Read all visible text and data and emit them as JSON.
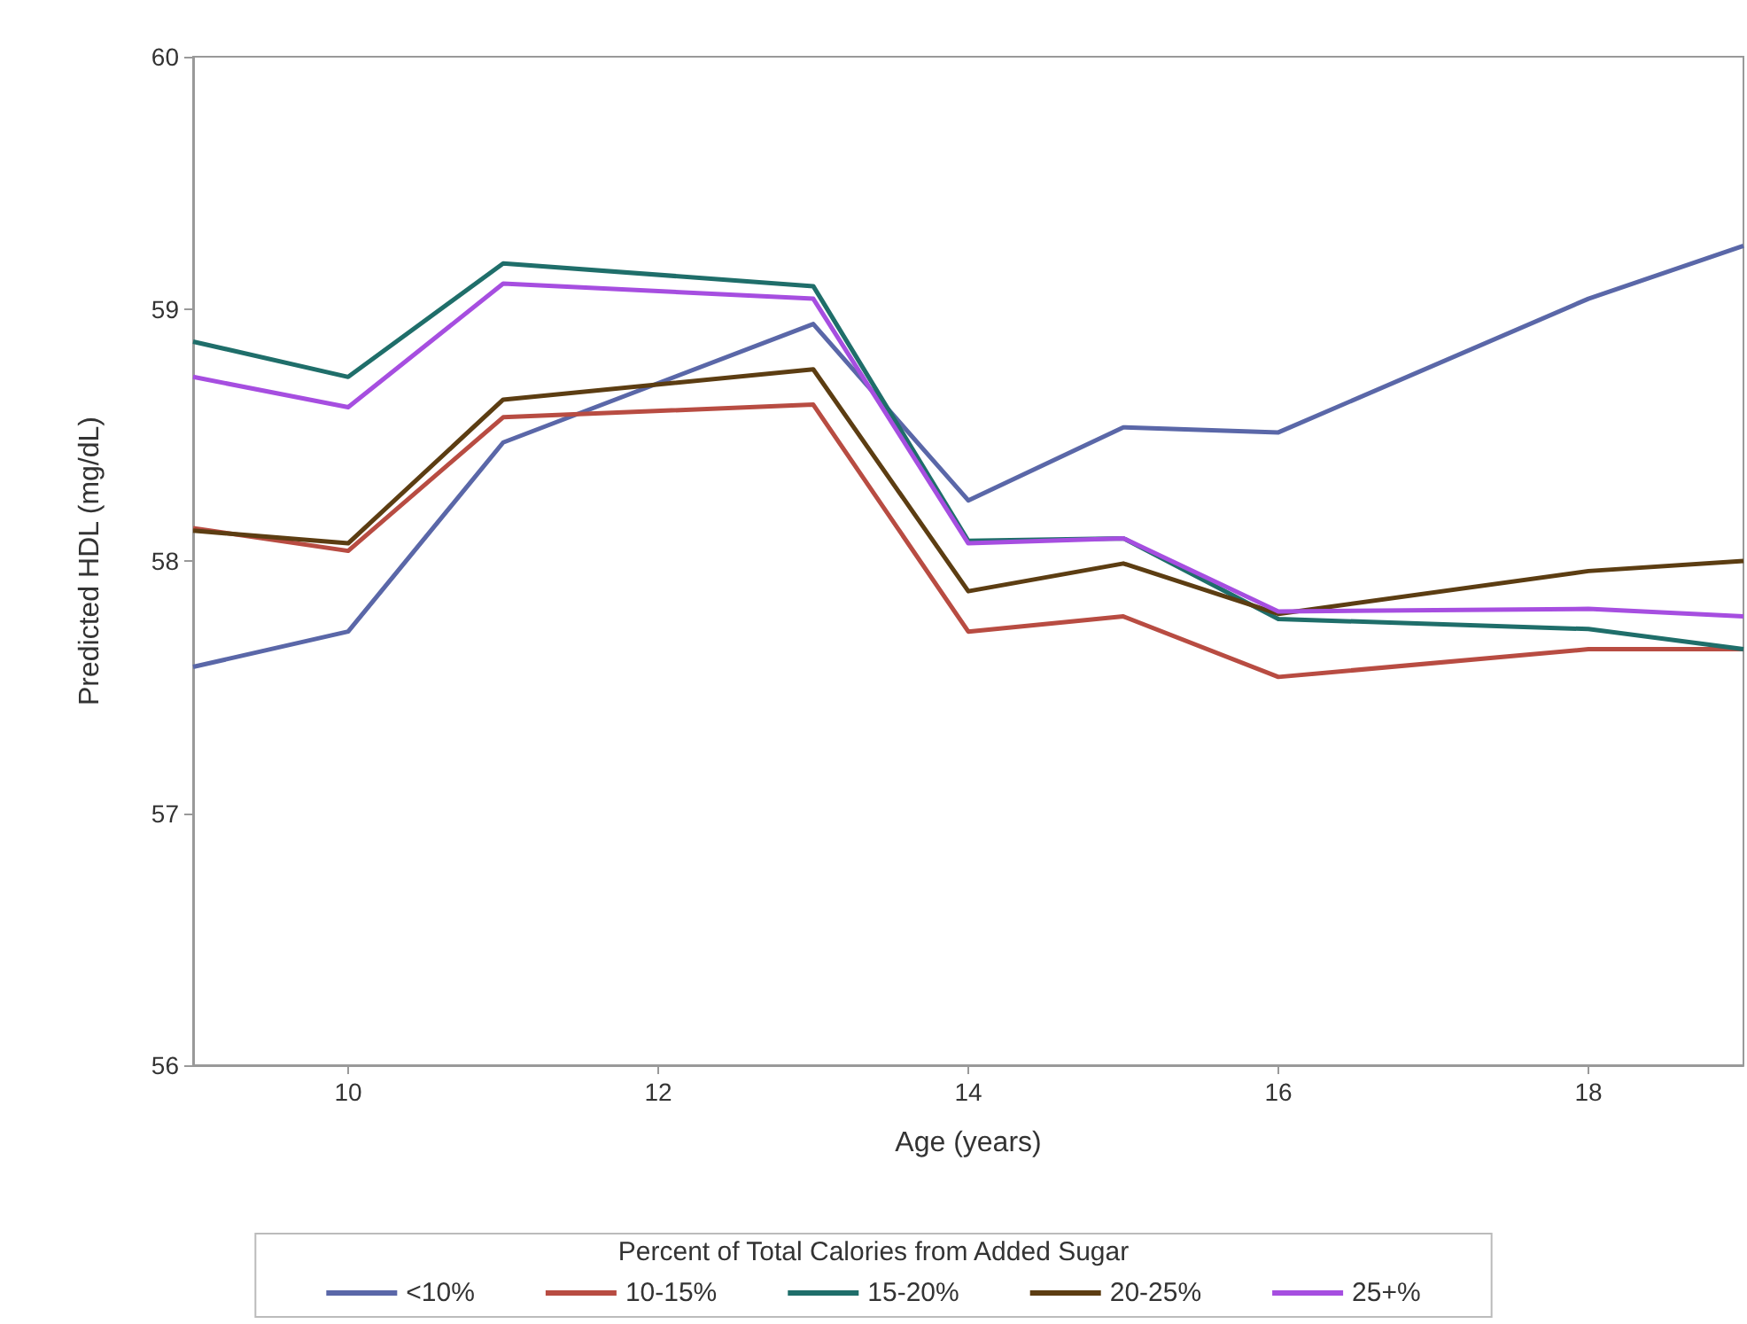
{
  "chart_data": {
    "type": "line",
    "xlabel": "Age (years)",
    "ylabel": "Predicted HDL (mg/dL)",
    "legend_title": "Percent of Total Calories from Added Sugar",
    "x": [
      9,
      10,
      11,
      13,
      14,
      15,
      16,
      18,
      19
    ],
    "xlim": [
      9,
      19
    ],
    "xticks": [
      10,
      12,
      14,
      16,
      18
    ],
    "ylim": [
      56,
      60
    ],
    "yticks": [
      56,
      57,
      58,
      59,
      60
    ],
    "grid": false,
    "legend": "bottom",
    "marker": "none",
    "line_style": "solid",
    "series": [
      {
        "name": "<10%",
        "color": "#5a67a8",
        "values": [
          57.58,
          57.72,
          58.47,
          58.94,
          58.24,
          58.53,
          58.51,
          59.04,
          59.25
        ]
      },
      {
        "name": "10-15%",
        "color": "#b84c42",
        "values": [
          58.13,
          58.04,
          58.57,
          58.62,
          57.72,
          57.78,
          57.54,
          57.65,
          57.65
        ]
      },
      {
        "name": "15-20%",
        "color": "#1f6e6a",
        "values": [
          58.87,
          58.73,
          59.18,
          59.09,
          58.08,
          58.09,
          57.77,
          57.73,
          57.65
        ]
      },
      {
        "name": "20-25%",
        "color": "#5c3d12",
        "values": [
          58.12,
          58.07,
          58.64,
          58.76,
          57.88,
          57.99,
          57.79,
          57.96,
          58.0
        ]
      },
      {
        "name": "25+%",
        "color": "#a64ee0",
        "values": [
          58.73,
          58.61,
          59.1,
          59.04,
          58.07,
          58.09,
          57.8,
          57.81,
          57.78
        ]
      }
    ]
  }
}
